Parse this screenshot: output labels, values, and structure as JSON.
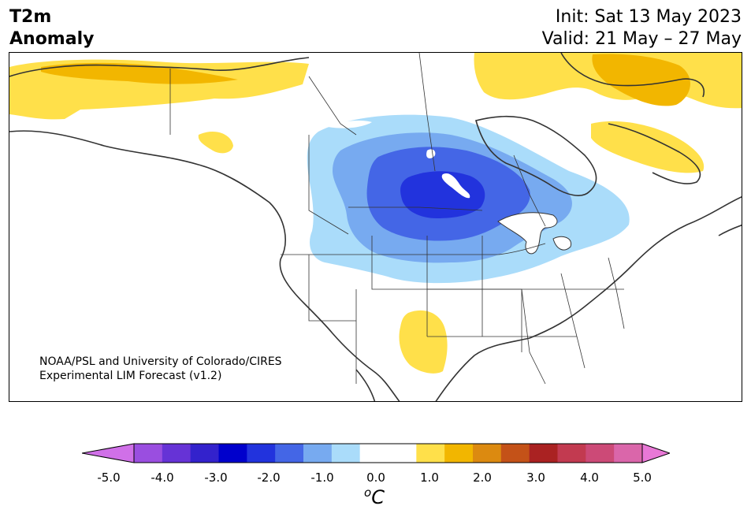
{
  "title": {
    "variable_line1": "T2m",
    "variable_line2": "Anomaly",
    "init": "Init: Sat 13 May 2023",
    "valid": "Valid: 21 May – 27 May"
  },
  "credit": {
    "line1": "NOAA/PSL and University of Colorado/CIRES",
    "line2": "Experimental LIM Forecast (v1.2)"
  },
  "colorbar": {
    "ticks": [
      "-5.0",
      "-4.0",
      "-3.0",
      "-2.0",
      "-1.0",
      "0.0",
      "1.0",
      "2.0",
      "3.0",
      "4.0",
      "5.0"
    ],
    "unit_symbol": "o",
    "unit_letter": "C",
    "colors": [
      "#d070e8",
      "#9a4ee0",
      "#6633d6",
      "#3322cc",
      "#0000cc",
      "#2233dd",
      "#4466e6",
      "#77aaf0",
      "#aadcfa",
      "#ffffff",
      "#ffffff",
      "#ffe04a",
      "#f2b600",
      "#dc8a10",
      "#c45218",
      "#aa2222",
      "#c23a50",
      "#cc4a77",
      "#da66aa",
      "#e878d6"
    ]
  },
  "anomaly_colors": {
    "warm_light": "#ffe04a",
    "warm_mid": "#f2b600",
    "cool_1": "#aadcfa",
    "cool_2": "#77aaf0",
    "cool_3": "#4466e6",
    "cool_4": "#2233dd"
  }
}
